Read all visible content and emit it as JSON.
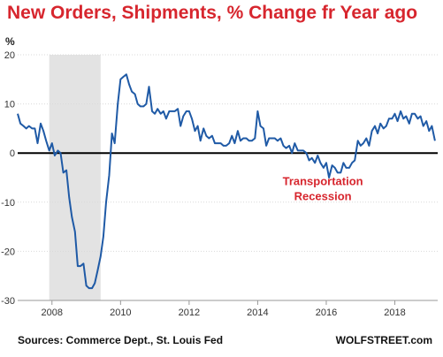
{
  "title": "New Orders, Shipments, % Change fr Year ago",
  "unit_label": "%",
  "source": "Sources: Commerce Dept., St. Louis Fed",
  "brand": "WOLFSTREET.com",
  "colors": {
    "title": "#d7262e",
    "line": "#1f5aa6",
    "shade": "#e3e3e3",
    "annotation": "#d7262e",
    "zero_line": "#000000",
    "grid": "#d9d9d9"
  },
  "chart_data": {
    "type": "line",
    "title": "New Orders, Shipments, % Change fr Year ago",
    "ylabel": "%",
    "xlabel": "",
    "xlim": [
      2007.0,
      2019.25
    ],
    "ylim": [
      -30,
      20
    ],
    "x_ticks": [
      2008,
      2010,
      2012,
      2014,
      2016,
      2018
    ],
    "x_tick_labels": [
      "2008",
      "2010",
      "2012",
      "2014",
      "2016",
      "2018"
    ],
    "y_ticks": [
      20,
      10,
      0,
      -10,
      -20,
      -30
    ],
    "y_tick_labels": [
      "20",
      "10",
      "0",
      "-10",
      "-20",
      "-30"
    ],
    "grid": "horizontal",
    "shaded_period": [
      2007.92,
      2009.42
    ],
    "annotations": [
      {
        "text": [
          "Transportation",
          "Recession"
        ],
        "x": 2015.9,
        "y": -6.5
      }
    ],
    "series": [
      {
        "x": [
          2007.0,
          2007.08,
          2007.17,
          2007.25,
          2007.33,
          2007.42,
          2007.5,
          2007.58,
          2007.67,
          2007.75,
          2007.83,
          2007.92,
          2008.0,
          2008.08,
          2008.17,
          2008.25,
          2008.33,
          2008.42,
          2008.5,
          2008.58,
          2008.67,
          2008.75,
          2008.83,
          2008.92,
          2009.0,
          2009.08,
          2009.17,
          2009.25,
          2009.33,
          2009.42,
          2009.5,
          2009.58,
          2009.67,
          2009.75,
          2009.83,
          2009.92,
          2010.0,
          2010.08,
          2010.17,
          2010.25,
          2010.33,
          2010.42,
          2010.5,
          2010.58,
          2010.67,
          2010.75,
          2010.83,
          2010.92,
          2011.0,
          2011.08,
          2011.17,
          2011.25,
          2011.33,
          2011.42,
          2011.5,
          2011.58,
          2011.67,
          2011.75,
          2011.83,
          2011.92,
          2012.0,
          2012.08,
          2012.17,
          2012.25,
          2012.33,
          2012.42,
          2012.5,
          2012.58,
          2012.67,
          2012.75,
          2012.83,
          2012.92,
          2013.0,
          2013.08,
          2013.17,
          2013.25,
          2013.33,
          2013.42,
          2013.5,
          2013.58,
          2013.67,
          2013.75,
          2013.83,
          2013.92,
          2014.0,
          2014.08,
          2014.17,
          2014.25,
          2014.33,
          2014.42,
          2014.5,
          2014.58,
          2014.67,
          2014.75,
          2014.83,
          2014.92,
          2015.0,
          2015.08,
          2015.17,
          2015.25,
          2015.33,
          2015.42,
          2015.5,
          2015.58,
          2015.67,
          2015.75,
          2015.83,
          2015.92,
          2016.0,
          2016.08,
          2016.17,
          2016.25,
          2016.33,
          2016.42,
          2016.5,
          2016.58,
          2016.67,
          2016.75,
          2016.83,
          2016.92,
          2017.0,
          2017.08,
          2017.17,
          2017.25,
          2017.33,
          2017.42,
          2017.5,
          2017.58,
          2017.67,
          2017.75,
          2017.83,
          2017.92,
          2018.0,
          2018.08,
          2018.17,
          2018.25,
          2018.33,
          2018.42,
          2018.5,
          2018.58,
          2018.67,
          2018.75,
          2018.83,
          2018.92,
          2019.0,
          2019.08,
          2019.17
        ],
        "values": [
          8.0,
          6.0,
          5.5,
          5.0,
          5.5,
          5.0,
          5.0,
          2.0,
          6.0,
          4.5,
          2.5,
          0.5,
          2.0,
          -0.5,
          0.5,
          0.0,
          -4.0,
          -3.5,
          -9.0,
          -13.0,
          -16.0,
          -23.0,
          -23.0,
          -22.5,
          -27.0,
          -27.5,
          -27.5,
          -26.5,
          -24.0,
          -21.0,
          -17.0,
          -10.0,
          -4.5,
          4.0,
          2.0,
          10.0,
          15.0,
          15.5,
          16.0,
          14.0,
          12.5,
          12.0,
          10.0,
          9.5,
          9.5,
          10.0,
          13.5,
          8.5,
          8.0,
          9.0,
          8.0,
          8.5,
          7.0,
          8.5,
          8.5,
          8.5,
          9.0,
          5.5,
          7.5,
          8.5,
          8.5,
          7.0,
          4.5,
          5.5,
          2.5,
          5.0,
          3.5,
          3.0,
          3.5,
          2.0,
          2.0,
          2.0,
          1.5,
          1.5,
          2.0,
          3.5,
          2.0,
          4.5,
          2.5,
          3.0,
          3.0,
          2.5,
          2.5,
          3.0,
          8.5,
          5.5,
          5.0,
          1.5,
          3.0,
          3.0,
          3.0,
          2.5,
          3.0,
          1.5,
          1.0,
          1.5,
          0.0,
          2.0,
          0.5,
          0.5,
          0.5,
          0.0,
          -1.5,
          -1.0,
          -2.0,
          -0.5,
          -2.0,
          -3.0,
          -2.0,
          -5.0,
          -2.5,
          -3.0,
          -4.0,
          -4.0,
          -2.0,
          -3.0,
          -3.0,
          -2.0,
          -1.5,
          2.5,
          1.5,
          2.0,
          3.0,
          1.5,
          4.5,
          5.5,
          4.0,
          6.0,
          5.0,
          5.5,
          7.0,
          7.0,
          8.0,
          6.5,
          8.5,
          7.0,
          7.5,
          6.0,
          8.0,
          8.0,
          7.0,
          7.5,
          5.5,
          6.5,
          4.5,
          5.5,
          2.5
        ]
      }
    ]
  }
}
